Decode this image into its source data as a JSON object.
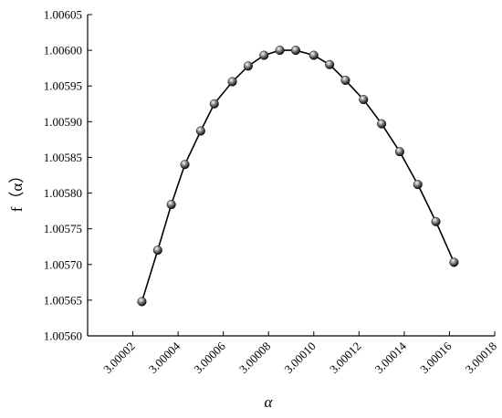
{
  "chart_data": {
    "type": "line",
    "title": "",
    "xlabel": "α",
    "ylabel": "f（α）",
    "xlim": [
      3.0,
      3.00018
    ],
    "ylim": [
      1.0056,
      1.00605
    ],
    "x_ticks": [
      3.00002,
      3.00004,
      3.00006,
      3.00008,
      3.0001,
      3.00012,
      3.00014,
      3.00016,
      3.00018
    ],
    "x_tick_labels": [
      "3.00002",
      "3.00004",
      "3.00006",
      "3.00008",
      "3.00010",
      "3.00012",
      "3.00014",
      "3.00016",
      "3.00018"
    ],
    "y_ticks": [
      1.0056,
      1.00565,
      1.0057,
      1.00575,
      1.0058,
      1.00585,
      1.0059,
      1.00595,
      1.006,
      1.00605
    ],
    "y_tick_labels": [
      "1.00560",
      "1.00565",
      "1.00570",
      "1.00575",
      "1.00580",
      "1.00585",
      "1.00590",
      "1.00595",
      "1.00600",
      "1.00605"
    ],
    "grid": false,
    "series": [
      {
        "color": "#000000",
        "marker": "sphere",
        "x": [
          3.000024,
          3.000031,
          3.000037,
          3.000043,
          3.00005,
          3.000056,
          3.000064,
          3.000071,
          3.000078,
          3.000085,
          3.000092,
          3.0001,
          3.000107,
          3.000114,
          3.000122,
          3.00013,
          3.000138,
          3.000146,
          3.000154,
          3.000162
        ],
        "y": [
          1.005648,
          1.00572,
          1.005784,
          1.00584,
          1.005887,
          1.005925,
          1.005956,
          1.005978,
          1.005993,
          1.006,
          1.006,
          1.005993,
          1.00598,
          1.005958,
          1.005931,
          1.005897,
          1.005858,
          1.005812,
          1.00576,
          1.005703
        ]
      }
    ]
  }
}
